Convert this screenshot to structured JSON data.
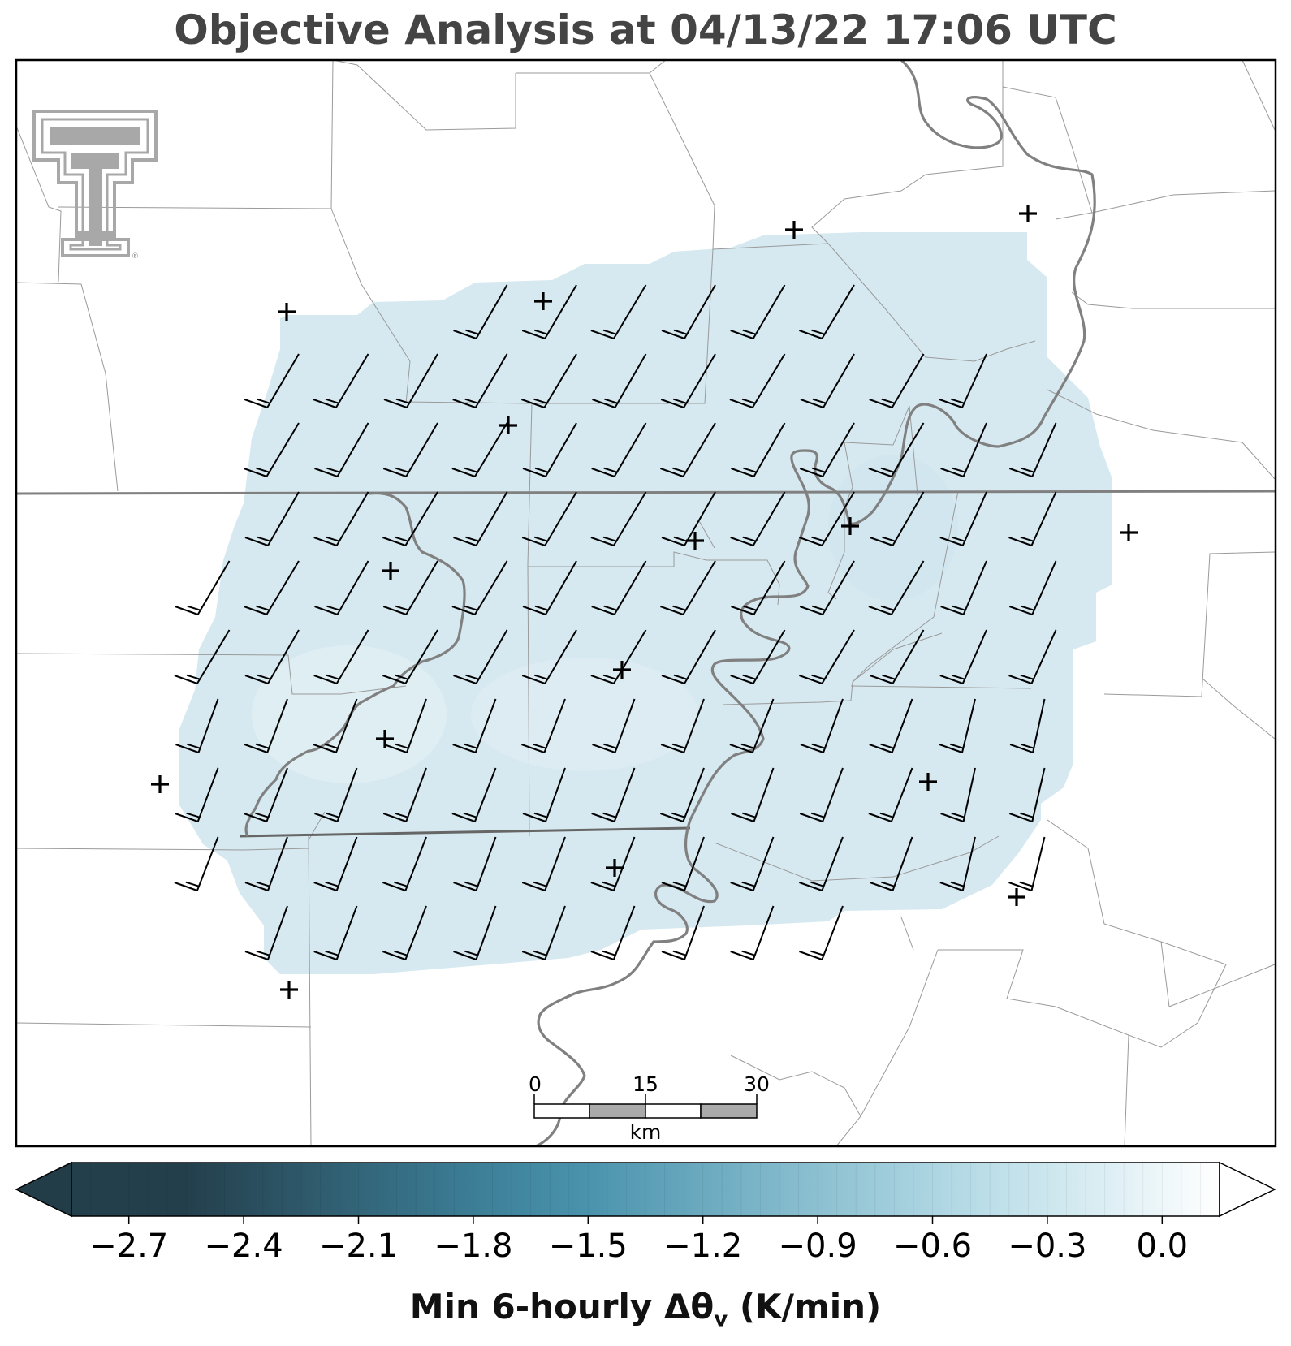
{
  "title": "Objective Analysis at 04/13/22 17:06 UTC",
  "colorbar": {
    "label_text": "Min 6-hourly Δθ",
    "label_sub": "v",
    "label_units": " (K/min)",
    "ticks": [
      "−2.7",
      "−2.4",
      "−2.1",
      "−1.8",
      "−1.5",
      "−1.2",
      "−0.9",
      "−0.6",
      "−0.3",
      "0.0"
    ],
    "tick_values": [
      -2.7,
      -2.4,
      -2.1,
      -1.8,
      -1.5,
      -1.2,
      -0.9,
      -0.6,
      -0.3,
      0.0
    ],
    "range": [
      -2.85,
      0.15
    ],
    "extend": "both",
    "colors": {
      "low": "#233f4c",
      "mid": "#4a93ad",
      "light": "#b6dbe6",
      "high": "#ffffff"
    }
  },
  "scalebar": {
    "labels": [
      "0",
      "15",
      "30"
    ],
    "unit": "km"
  },
  "logo": {
    "name": "Texas Tech Double T",
    "mark": "®"
  },
  "field": {
    "fill_color": "#d6e9f0",
    "value_range_k_per_min": [
      -0.3,
      -0.2
    ]
  },
  "colors": {
    "frame": "#000000",
    "county_lines": "#9a9a9a",
    "state_line": "#808080",
    "river": "#808080",
    "barbs": "#000000",
    "stations": "#000000"
  },
  "wind_barbs": {
    "direction": "southwest",
    "typical_speed": "one-and-a-half to two full barbs"
  }
}
